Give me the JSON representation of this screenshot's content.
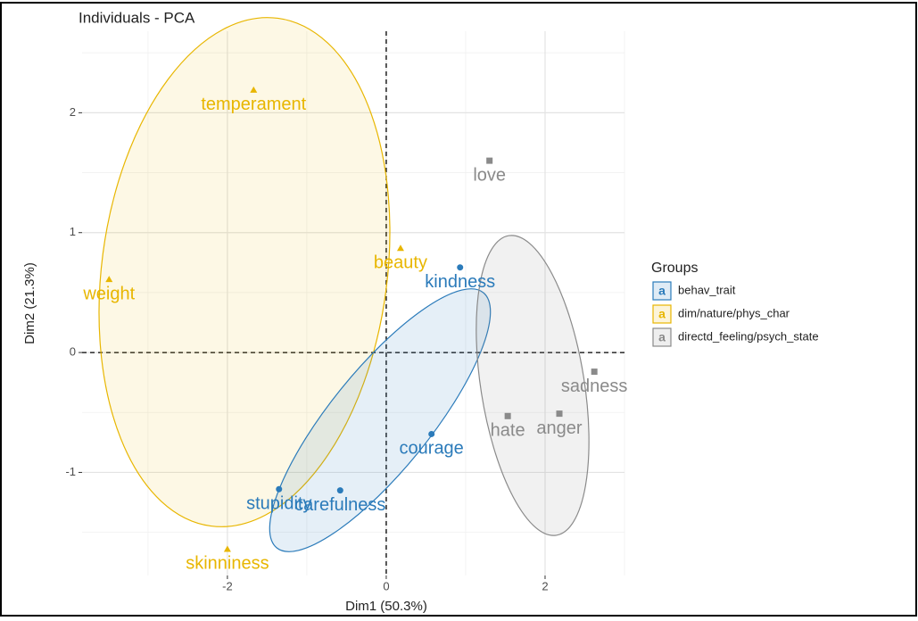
{
  "chart_data": {
    "type": "scatter",
    "title": "Individuals - PCA",
    "x_label": "Dim1 (50.3%)",
    "y_label": "Dim2 (21.3%)",
    "xlim": [
      -3.83,
      3.0
    ],
    "ylim": [
      -1.86,
      2.68
    ],
    "xticks": [
      -2,
      0,
      2
    ],
    "yticks": [
      -1,
      0,
      1,
      2
    ],
    "grid": true,
    "vline": 0,
    "hline": 0,
    "legend_title": "Groups",
    "legend_position": "right",
    "series": [
      {
        "name": "behav_trait",
        "color": "#2b7bba",
        "shape": "circle",
        "labels": [
          "kindness",
          "courage",
          "stupidity",
          "carefulness"
        ],
        "x": [
          0.93,
          0.57,
          -1.35,
          -0.58
        ],
        "y": [
          0.71,
          -0.68,
          -1.14,
          -1.15
        ]
      },
      {
        "name": "dim/nature/phys_char",
        "color": "#e8b600",
        "shape": "triangle",
        "labels": [
          "temperament",
          "weight",
          "beauty",
          "skinniness"
        ],
        "x": [
          -1.67,
          -3.49,
          0.18,
          -2.0
        ],
        "y": [
          2.19,
          0.61,
          0.87,
          -1.64
        ]
      },
      {
        "name": "directd_feeling/psych_state",
        "color": "#8a8a8a",
        "shape": "square",
        "labels": [
          "love",
          "sadness",
          "anger",
          "hate"
        ],
        "x": [
          1.3,
          2.62,
          2.18,
          1.53
        ],
        "y": [
          1.6,
          -0.16,
          -0.51,
          -0.53
        ]
      }
    ]
  }
}
